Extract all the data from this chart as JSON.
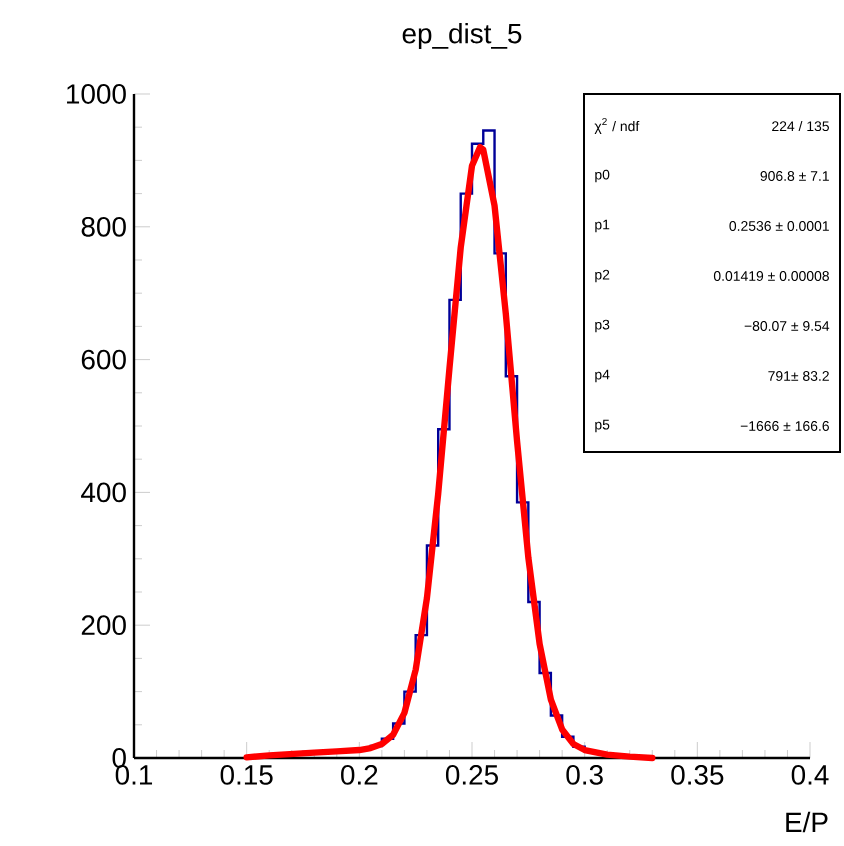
{
  "chart_data": {
    "type": "histogram",
    "title": "ep_dist_5",
    "xlabel": "E/P",
    "xlim": [
      0.1,
      0.4
    ],
    "ylim": [
      0,
      1000
    ],
    "xticks": [
      0.1,
      0.15,
      0.2,
      0.25,
      0.3,
      0.35,
      0.4
    ],
    "yticks": [
      0,
      200,
      400,
      600,
      800,
      1000
    ],
    "series": [
      {
        "color": "#000099",
        "bins": [
          0.15,
          0.155,
          0.16,
          0.165,
          0.17,
          0.175,
          0.18,
          0.185,
          0.19,
          0.195,
          0.2,
          0.205,
          0.21,
          0.215,
          0.22,
          0.225,
          0.23,
          0.235,
          0.24,
          0.245,
          0.25,
          0.255,
          0.26,
          0.265,
          0.27,
          0.275,
          0.28,
          0.285,
          0.29,
          0.295,
          0.3,
          0.305,
          0.31,
          0.315,
          0.32,
          0.325,
          0.33
        ],
        "values": [
          2,
          3,
          5,
          6,
          7,
          9,
          8,
          10,
          11,
          12,
          14,
          18,
          29,
          52,
          100,
          185,
          320,
          495,
          690,
          850,
          925,
          945,
          760,
          575,
          385,
          235,
          128,
          64,
          32,
          17,
          10,
          7,
          5,
          3,
          2,
          1
        ]
      },
      {
        "type": "line",
        "color": "#ff0000",
        "x": [
          0.15,
          0.16,
          0.17,
          0.18,
          0.19,
          0.2,
          0.205,
          0.21,
          0.215,
          0.22,
          0.225,
          0.23,
          0.235,
          0.24,
          0.245,
          0.25,
          0.2536,
          0.255,
          0.26,
          0.265,
          0.27,
          0.275,
          0.28,
          0.285,
          0.29,
          0.295,
          0.3,
          0.31,
          0.32,
          0.33
        ],
        "values": [
          1,
          4,
          6,
          8,
          10,
          12,
          15,
          21,
          35,
          68,
          133,
          241,
          398,
          587,
          769,
          892,
          920,
          916,
          832,
          669,
          477,
          302,
          172,
          88,
          43,
          21,
          12,
          5,
          2,
          0
        ]
      }
    ],
    "annotations": [
      "χ$^{2}$ / ndf",
      "224 / 135",
      "p0",
      "906.8 ± 7.1",
      "p1",
      "0.2536 ± 0.0001",
      "p2",
      "0.01419 ± 0.00008",
      "p3",
      "−80.07 ± 9.54",
      "p4",
      "791± 83.2",
      "p5",
      "−1666 ± 166.6"
    ]
  }
}
